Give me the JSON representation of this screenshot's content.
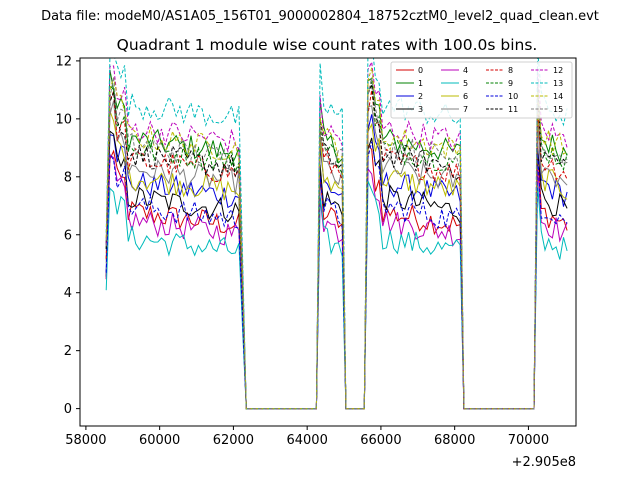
{
  "chart_data": {
    "type": "line",
    "suptitle": "Data file: modeM0/AS1A05_156T01_9000002804_18752cztM0_level2_quad_clean.evt",
    "title": "Quadrant 1 module wise count rates with 100.0s bins.",
    "xlabel": "",
    "ylabel": "",
    "x_offset_label": "+2.905e8",
    "xlim": [
      57840,
      71290
    ],
    "ylim": [
      -0.6,
      12.1
    ],
    "x_ticks": [
      58000,
      60000,
      62000,
      64000,
      66000,
      68000,
      70000
    ],
    "x_tick_labels": [
      "58000",
      "60000",
      "62000",
      "64000",
      "66000",
      "68000",
      "70000"
    ],
    "y_ticks": [
      0,
      2,
      4,
      6,
      8,
      10,
      12
    ],
    "y_tick_labels": [
      "0",
      "2",
      "4",
      "6",
      "8",
      "10",
      "12"
    ],
    "segments": [
      {
        "start": 58550,
        "end": 62250
      },
      {
        "start": 64300,
        "end": 65000
      },
      {
        "start": 65600,
        "end": 68200
      },
      {
        "start": 70200,
        "end": 71100
      }
    ],
    "series": [
      {
        "name": "0",
        "color": "#d40000",
        "dash": "solid",
        "level": 6.3
      },
      {
        "name": "1",
        "color": "#008000",
        "dash": "solid",
        "level": 8.8
      },
      {
        "name": "2",
        "color": "#0000dd",
        "dash": "solid",
        "level": 7.3
      },
      {
        "name": "3",
        "color": "#000000",
        "dash": "solid",
        "level": 6.8
      },
      {
        "name": "4",
        "color": "#bb00bb",
        "dash": "solid",
        "level": 6.0
      },
      {
        "name": "5",
        "color": "#00bbbb",
        "dash": "solid",
        "level": 5.4
      },
      {
        "name": "6",
        "color": "#bbbb00",
        "dash": "solid",
        "level": 7.5
      },
      {
        "name": "7",
        "color": "#808080",
        "dash": "solid",
        "level": 7.8
      },
      {
        "name": "8",
        "color": "#d40000",
        "dash": "dashed",
        "level": 8.1
      },
      {
        "name": "9",
        "color": "#008000",
        "dash": "dashed",
        "level": 8.5
      },
      {
        "name": "10",
        "color": "#0000dd",
        "dash": "dashed",
        "level": 6.5
      },
      {
        "name": "11",
        "color": "#000000",
        "dash": "dashed",
        "level": 8.3
      },
      {
        "name": "12",
        "color": "#bb00bb",
        "dash": "dashed",
        "level": 9.2
      },
      {
        "name": "13",
        "color": "#00bbbb",
        "dash": "dashed",
        "level": 10.0
      },
      {
        "name": "14",
        "color": "#bbbb00",
        "dash": "dashed",
        "level": 8.9
      },
      {
        "name": "15",
        "color": "#808080",
        "dash": "dashed",
        "level": 8.6
      }
    ]
  }
}
